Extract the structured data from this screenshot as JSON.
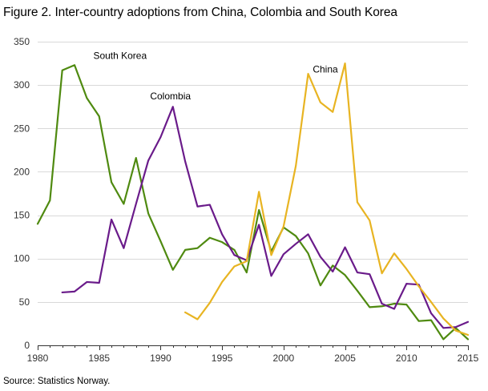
{
  "title": "Figure 2. Inter-country adoptions from China, Colombia and South Korea",
  "source": "Source: Statistics Norway.",
  "chart_data": {
    "type": "line",
    "title": "Figure 2. Inter-country adoptions from China, Colombia and South Korea",
    "xlabel": "",
    "ylabel": "",
    "xlim": [
      1980,
      2015
    ],
    "ylim": [
      0,
      350
    ],
    "x_ticks": [
      "1980",
      "1985",
      "1990",
      "1995",
      "2000",
      "2005",
      "2010",
      "2015"
    ],
    "y_ticks": [
      "0",
      "50",
      "100",
      "150",
      "200",
      "250",
      "300",
      "350"
    ],
    "grid": "horizontal",
    "legend": "inline labels",
    "series": [
      {
        "name": "South Korea",
        "color": "#4f8a10",
        "x": [
          1980,
          1981,
          1982,
          1983,
          1984,
          1985,
          1986,
          1987,
          1988,
          1989,
          1990,
          1991,
          1992,
          1993,
          1994,
          1995,
          1996,
          1997,
          1998,
          1999,
          2000,
          2001,
          2002,
          2003,
          2004,
          2005,
          2006,
          2007,
          2008,
          2009,
          2010,
          2011,
          2012,
          2013,
          2014,
          2015
        ],
        "values": [
          140,
          167,
          317,
          323,
          285,
          264,
          188,
          163,
          216,
          152,
          120,
          87,
          110,
          112,
          124,
          119,
          110,
          84,
          156,
          108,
          136,
          126,
          106,
          69,
          92,
          81,
          63,
          44,
          45,
          48,
          47,
          28,
          29,
          7,
          20,
          7
        ]
      },
      {
        "name": "Colombia",
        "color": "#6a1b8a",
        "x": [
          1982,
          1983,
          1984,
          1985,
          1986,
          1987,
          1988,
          1989,
          1990,
          1991,
          1992,
          1993,
          1994,
          1995,
          1996,
          1997,
          1998,
          1999,
          2000,
          2001,
          2002,
          2003,
          2004,
          2005,
          2006,
          2007,
          2008,
          2009,
          2010,
          2011,
          2012,
          2013,
          2014,
          2015
        ],
        "values": [
          61,
          62,
          73,
          72,
          145,
          112,
          163,
          213,
          240,
          275,
          212,
          160,
          162,
          128,
          104,
          98,
          139,
          80,
          105,
          117,
          128,
          102,
          85,
          113,
          84,
          82,
          48,
          42,
          71,
          70,
          37,
          20,
          21,
          27
        ]
      },
      {
        "name": "China",
        "color": "#e8b422",
        "x": [
          1992,
          1993,
          1994,
          1995,
          1996,
          1997,
          1998,
          1999,
          2000,
          2001,
          2002,
          2003,
          2004,
          2005,
          2006,
          2007,
          2008,
          2009,
          2010,
          2011,
          2012,
          2013,
          2014,
          2015
        ],
        "values": [
          38,
          30,
          49,
          73,
          91,
          97,
          177,
          104,
          137,
          207,
          313,
          280,
          269,
          325,
          165,
          144,
          83,
          106,
          88,
          68,
          50,
          31,
          17,
          12
        ]
      }
    ],
    "labels": [
      {
        "text": "South Korea",
        "x": 1986.7,
        "y": 334
      },
      {
        "text": "Colombia",
        "x": 1990.8,
        "y": 287
      },
      {
        "text": "China",
        "x": 2003.4,
        "y": 318
      }
    ]
  }
}
